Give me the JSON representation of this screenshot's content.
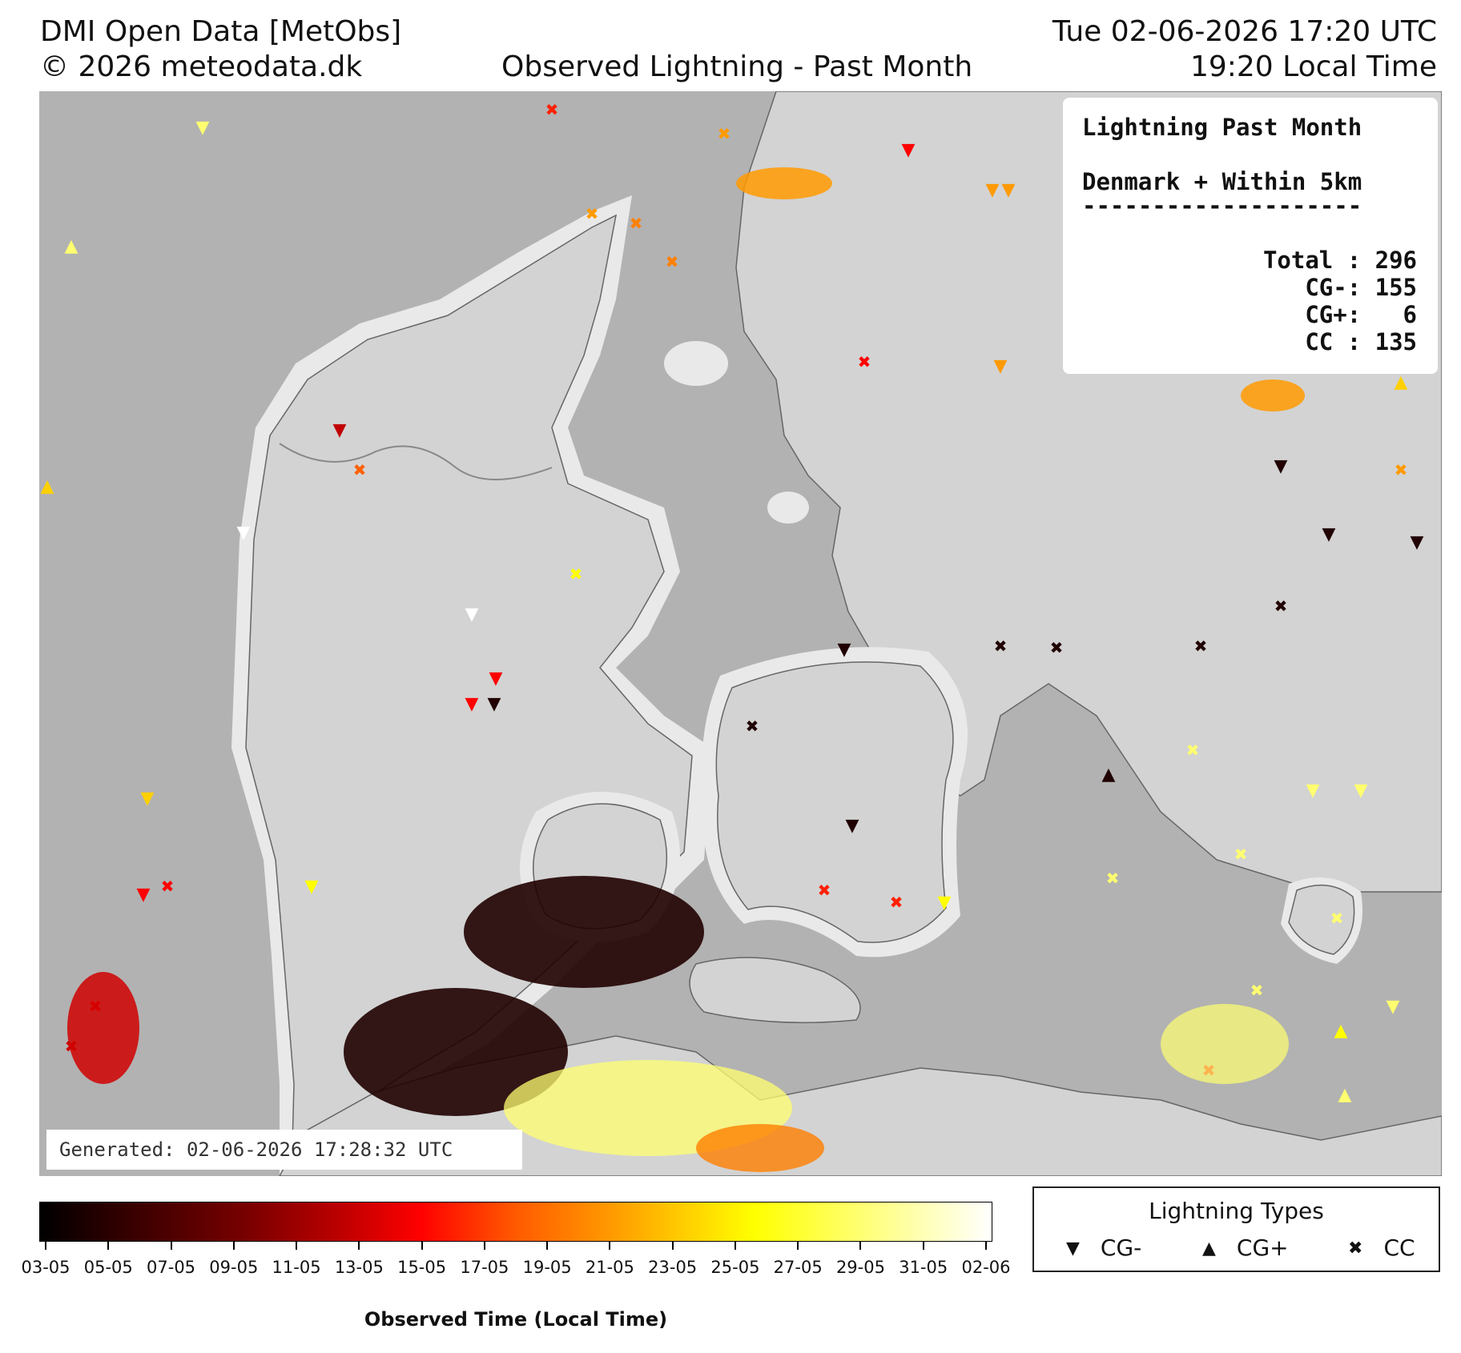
{
  "header": {
    "source": "DMI Open Data [MetObs]",
    "copyright": "© 2026 meteodata.dk",
    "title": "Observed Lightning - Past Month",
    "utc_time": "Tue 02-06-2026 17:20 UTC",
    "local_time": "19:20 Local Time"
  },
  "stats": {
    "title": "Lightning Past Month",
    "region": "Denmark + Within 5km",
    "rule": "--------------------",
    "total": "Total : 296",
    "cg_minus": "CG-: 155",
    "cg_plus": "CG+:   6",
    "cc": "CC : 135"
  },
  "generated": "Generated: 02-06-2026 17:28:32 UTC",
  "colorbar": {
    "title": "Observed Time (Local Time)",
    "ticks": [
      "03-05",
      "05-05",
      "07-05",
      "09-05",
      "11-05",
      "13-05",
      "15-05",
      "17-05",
      "19-05",
      "21-05",
      "23-05",
      "25-05",
      "27-05",
      "29-05",
      "31-05",
      "02-06"
    ]
  },
  "legend": {
    "title": "Lightning Types",
    "items": [
      {
        "symbol": "▼",
        "label": "CG-"
      },
      {
        "symbol": "▲",
        "label": "CG+"
      },
      {
        "symbol": "✖",
        "label": "CC"
      }
    ]
  },
  "colors": {
    "sea": "#b2b2b2",
    "land": "#d3d3d3",
    "buffer": "#e9e9e9",
    "coast": "#666666"
  }
}
